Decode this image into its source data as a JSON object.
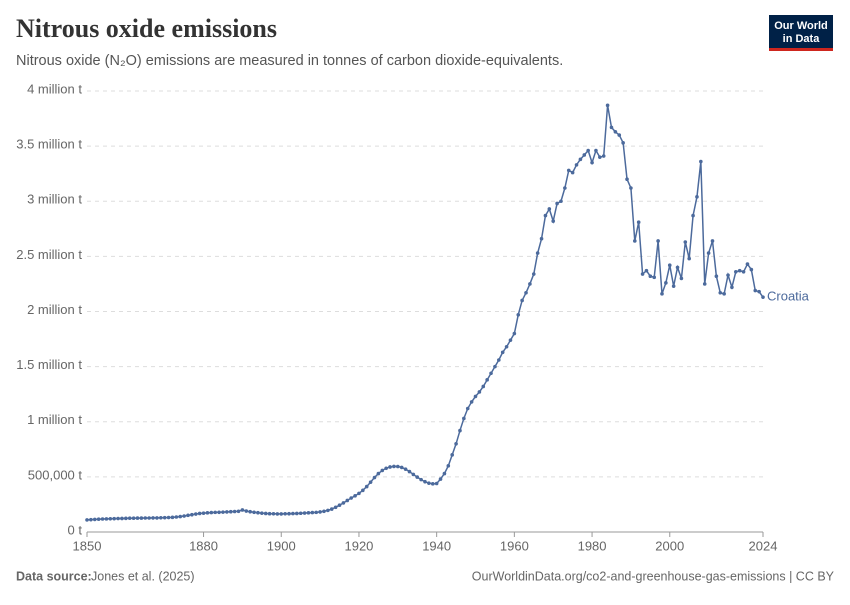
{
  "header": {
    "title": "Nitrous oxide emissions",
    "subtitle": "Nitrous oxide (N₂O) emissions are measured in tonnes of carbon dioxide-equivalents.",
    "logo": [
      "Our World",
      "in Data"
    ]
  },
  "footer": {
    "source_label": "Data source:",
    "source": "Jones et al. (2025)",
    "url": "OurWorldinData.org/co2-and-greenhouse-gas-emissions | CC BY"
  },
  "chart_data": {
    "type": "line",
    "grid": true,
    "xlim": [
      1850,
      2024
    ],
    "xticks": [
      1850,
      1880,
      1900,
      1920,
      1940,
      1960,
      1980,
      2000,
      2024
    ],
    "ylim": [
      0,
      4000000
    ],
    "yticks": [
      {
        "value": 0,
        "label": "0 t"
      },
      {
        "value": 500000,
        "label": "500,000 t"
      },
      {
        "value": 1000000,
        "label": "1 million t"
      },
      {
        "value": 1500000,
        "label": "1.5 million t"
      },
      {
        "value": 2000000,
        "label": "2 million t"
      },
      {
        "value": 2500000,
        "label": "2.5 million t"
      },
      {
        "value": 3000000,
        "label": "3 million t"
      },
      {
        "value": 3500000,
        "label": "3.5 million t"
      },
      {
        "value": 4000000,
        "label": "4 million t"
      }
    ],
    "x": [
      1850,
      1851,
      1852,
      1853,
      1854,
      1855,
      1856,
      1857,
      1858,
      1859,
      1860,
      1861,
      1862,
      1863,
      1864,
      1865,
      1866,
      1867,
      1868,
      1869,
      1870,
      1871,
      1872,
      1873,
      1874,
      1875,
      1876,
      1877,
      1878,
      1879,
      1880,
      1881,
      1882,
      1883,
      1884,
      1885,
      1886,
      1887,
      1888,
      1889,
      1890,
      1891,
      1892,
      1893,
      1894,
      1895,
      1896,
      1897,
      1898,
      1899,
      1900,
      1901,
      1902,
      1903,
      1904,
      1905,
      1906,
      1907,
      1908,
      1909,
      1910,
      1911,
      1912,
      1913,
      1914,
      1915,
      1916,
      1917,
      1918,
      1919,
      1920,
      1921,
      1922,
      1923,
      1924,
      1925,
      1926,
      1927,
      1928,
      1929,
      1930,
      1931,
      1932,
      1933,
      1934,
      1935,
      1936,
      1937,
      1938,
      1939,
      1940,
      1941,
      1942,
      1943,
      1944,
      1945,
      1946,
      1947,
      1948,
      1949,
      1950,
      1951,
      1952,
      1953,
      1954,
      1955,
      1956,
      1957,
      1958,
      1959,
      1960,
      1961,
      1962,
      1963,
      1964,
      1965,
      1966,
      1967,
      1968,
      1969,
      1970,
      1971,
      1972,
      1973,
      1974,
      1975,
      1976,
      1977,
      1978,
      1979,
      1980,
      1981,
      1982,
      1983,
      1984,
      1985,
      1986,
      1987,
      1988,
      1989,
      1990,
      1991,
      1992,
      1993,
      1994,
      1995,
      1996,
      1997,
      1998,
      1999,
      2000,
      2001,
      2002,
      2003,
      2004,
      2005,
      2006,
      2007,
      2008,
      2009,
      2010,
      2011,
      2012,
      2013,
      2014,
      2015,
      2016,
      2017,
      2018,
      2019,
      2020,
      2021,
      2022,
      2023,
      2024
    ],
    "series": [
      {
        "name": "Croatia",
        "color": "#4c6a9c",
        "values": [
          110000,
          112000,
          114000,
          116000,
          118000,
          119000,
          120000,
          121000,
          122000,
          123000,
          124000,
          125000,
          125000,
          126000,
          126000,
          127000,
          127000,
          128000,
          128000,
          129000,
          130000,
          131000,
          133000,
          136000,
          140000,
          145000,
          151000,
          157000,
          163000,
          168000,
          171000,
          174000,
          176000,
          178000,
          179000,
          180000,
          182000,
          184000,
          186000,
          188000,
          200000,
          190000,
          184000,
          179000,
          175000,
          171000,
          168000,
          166000,
          165000,
          164000,
          164000,
          165000,
          166000,
          167000,
          168000,
          170000,
          172000,
          174000,
          176000,
          178000,
          182000,
          188000,
          196000,
          208000,
          224000,
          243000,
          264000,
          286000,
          308000,
          328000,
          350000,
          378000,
          412000,
          452000,
          494000,
          530000,
          558000,
          578000,
          590000,
          595000,
          594000,
          586000,
          570000,
          548000,
          522000,
          498000,
          475000,
          456000,
          443000,
          437000,
          440000,
          480000,
          530000,
          600000,
          700000,
          800000,
          920000,
          1030000,
          1120000,
          1180000,
          1230000,
          1270000,
          1320000,
          1380000,
          1440000,
          1500000,
          1560000,
          1630000,
          1680000,
          1740000,
          1800000,
          1970000,
          2100000,
          2170000,
          2250000,
          2340000,
          2530000,
          2660000,
          2870000,
          2930000,
          2820000,
          2980000,
          3000000,
          3120000,
          3280000,
          3260000,
          3330000,
          3380000,
          3420000,
          3460000,
          3350000,
          3460000,
          3400000,
          3410000,
          3870000,
          3670000,
          3630000,
          3600000,
          3530000,
          3200000,
          3120000,
          2640000,
          2810000,
          2340000,
          2370000,
          2320000,
          2310000,
          2640000,
          2160000,
          2260000,
          2420000,
          2230000,
          2400000,
          2300000,
          2630000,
          2480000,
          2870000,
          3040000,
          3360000,
          2250000,
          2530000,
          2640000,
          2320000,
          2170000,
          2160000,
          2330000,
          2220000,
          2360000,
          2370000,
          2360000,
          2430000,
          2380000,
          2190000,
          2180000,
          2130000
        ]
      }
    ]
  }
}
